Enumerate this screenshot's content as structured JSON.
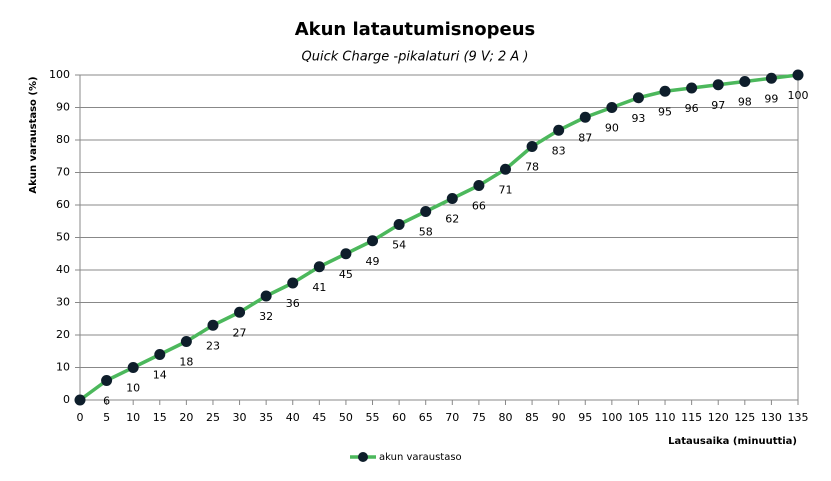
{
  "chart_data": {
    "type": "line",
    "title": "Akun latautumisnopeus",
    "subtitle": "Quick Charge -pikalaturi (9 V; 2 A )",
    "x_label": "Latausaika  (minuuttia)",
    "y_label": "Akun varaustaso  (%)",
    "x": [
      0,
      5,
      10,
      15,
      20,
      25,
      30,
      35,
      40,
      45,
      50,
      55,
      60,
      65,
      70,
      75,
      80,
      85,
      90,
      95,
      100,
      105,
      110,
      115,
      120,
      125,
      130,
      135
    ],
    "series": [
      {
        "name": "akun varaustaso",
        "color": "#4cb85c",
        "marker_color": "#0e1e2b",
        "values": [
          0,
          6,
          10,
          14,
          18,
          23,
          27,
          32,
          36,
          41,
          45,
          49,
          54,
          58,
          62,
          66,
          71,
          78,
          83,
          87,
          90,
          93,
          95,
          96,
          97,
          98,
          99,
          100
        ]
      }
    ],
    "xlim": [
      0,
      135
    ],
    "xticks": [
      0,
      5,
      10,
      15,
      20,
      25,
      30,
      35,
      40,
      45,
      50,
      55,
      60,
      65,
      70,
      75,
      80,
      85,
      90,
      95,
      100,
      105,
      110,
      115,
      120,
      125,
      130,
      135
    ],
    "ylim": [
      0,
      100
    ],
    "yticks": [
      0,
      10,
      20,
      30,
      40,
      50,
      60,
      70,
      80,
      90,
      100
    ],
    "grid": true,
    "legend": "bottom"
  }
}
